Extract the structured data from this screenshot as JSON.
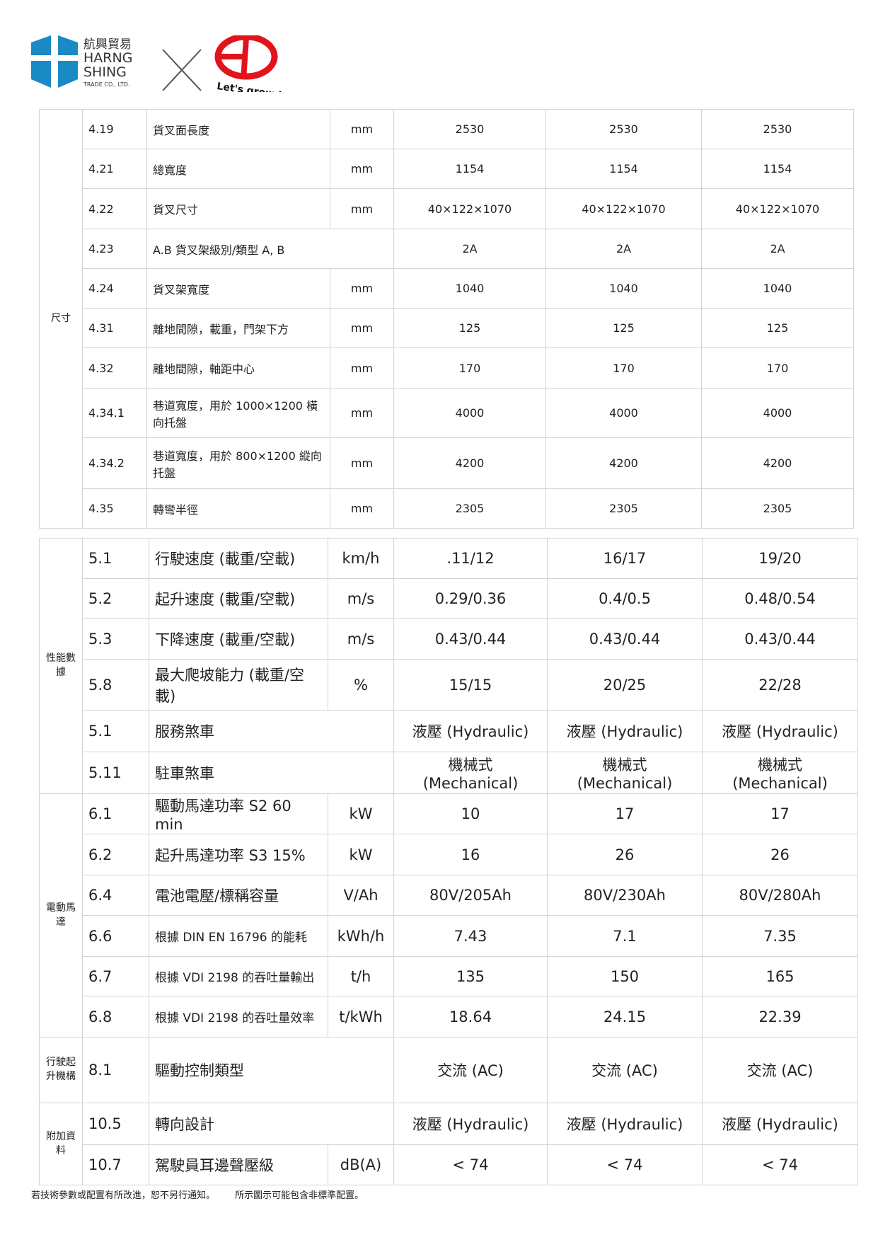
{
  "header": {
    "company_cn": "航興貿易",
    "company_en_1": "HARNG",
    "company_en_2": "SHING",
    "company_sub": "TRADE CO., LTD.",
    "partner_logo_text": "EP",
    "partner_slogan": "Let's grow together",
    "brand_colors": {
      "harng_shing_blue": "#1a8ac4",
      "ep_red": "#e2141b"
    }
  },
  "table1": {
    "groups": [
      {
        "category": "尺寸",
        "rows": [
          {
            "no": "4.19",
            "name": "貨叉面長度",
            "unit": "mm",
            "values": [
              "2530",
              "2530",
              "2530"
            ]
          },
          {
            "no": "4.21",
            "name": "總寬度",
            "unit": "mm",
            "values": [
              "1154",
              "1154",
              "1154"
            ]
          },
          {
            "no": "4.22",
            "name": "貨叉尺寸",
            "unit": "mm",
            "values": [
              "40×122×1070",
              "40×122×1070",
              "40×122×1070"
            ]
          },
          {
            "no": "4.23",
            "name": "A.B 貨叉架級別/類型 A, B",
            "unit": "",
            "span": true,
            "values": [
              "2A",
              "2A",
              "2A"
            ]
          },
          {
            "no": "4.24",
            "name": "貨叉架寬度",
            "unit": "mm",
            "values": [
              "1040",
              "1040",
              "1040"
            ]
          },
          {
            "no": "4.31",
            "name": "離地間隙，載重，門架下方",
            "unit": "mm",
            "values": [
              "125",
              "125",
              "125"
            ]
          },
          {
            "no": "4.32",
            "name": "離地間隙，軸距中心",
            "unit": "mm",
            "values": [
              "170",
              "170",
              "170"
            ]
          },
          {
            "no": "4.34.1",
            "name": "巷道寬度，用於 1000×1200 橫向托盤",
            "unit": "mm",
            "values": [
              "4000",
              "4000",
              "4000"
            ]
          },
          {
            "no": "4.34.2",
            "name": "巷道寬度，用於 800×1200 縱向托盤",
            "unit": "mm",
            "values": [
              "4200",
              "4200",
              "4200"
            ]
          },
          {
            "no": "4.35",
            "name": "轉彎半徑",
            "unit": "mm",
            "values": [
              "2305",
              "2305",
              "2305"
            ]
          }
        ]
      }
    ]
  },
  "table2": {
    "groups": [
      {
        "category": "性能數據",
        "rows": [
          {
            "no": "5.1",
            "name": "行駛速度 (載重/空載)",
            "unit": "km/h",
            "values": [
              ".11/12",
              "16/17",
              "19/20"
            ]
          },
          {
            "no": "5.2",
            "name": "起升速度 (載重/空載)",
            "unit": "m/s",
            "values": [
              "0.29/0.36",
              "0.4/0.5",
              "0.48/0.54"
            ]
          },
          {
            "no": "5.3",
            "name": "下降速度 (載重/空載)",
            "unit": "m/s",
            "values": [
              "0.43/0.44",
              "0.43/0.44",
              "0.43/0.44"
            ]
          },
          {
            "no": "5.8",
            "name": "最大爬坡能力 (載重/空載)",
            "unit": "%",
            "values": [
              "15/15",
              "20/25",
              "22/28"
            ]
          },
          {
            "no": "5.1",
            "name": "服務煞車",
            "unit": "",
            "span": true,
            "values": [
              "液壓 (Hydraulic)",
              "液壓 (Hydraulic)",
              "液壓 (Hydraulic)"
            ]
          },
          {
            "no": "5.11",
            "name": "駐車煞車",
            "unit": "",
            "span": true,
            "values": [
              "機械式 (Mechanical)",
              "機械式 (Mechanical)",
              "機械式 (Mechanical)"
            ]
          }
        ]
      },
      {
        "category": "電動馬達",
        "rows": [
          {
            "no": "6.1",
            "name": "驅動馬達功率 S2 60 min",
            "unit": "kW",
            "values": [
              "10",
              "17",
              "17"
            ]
          },
          {
            "no": "6.2",
            "name": "起升馬達功率 S3 15%",
            "unit": "kW",
            "values": [
              "16",
              "26",
              "26"
            ]
          },
          {
            "no": "6.4",
            "name": "電池電壓/標稱容量",
            "unit": "V/Ah",
            "values": [
              "80V/205Ah",
              "80V/230Ah",
              "80V/280Ah"
            ]
          },
          {
            "no": "6.6",
            "name": "根據 DIN EN 16796 的能耗",
            "unit": "kWh/h",
            "small": true,
            "values": [
              "7.43",
              "7.1",
              "7.35"
            ]
          },
          {
            "no": "6.7",
            "name": "根據 VDI 2198 的吞吐量輸出",
            "unit": "t/h",
            "small": true,
            "values": [
              "135",
              "150",
              "165"
            ]
          },
          {
            "no": "6.8",
            "name": "根據 VDI 2198 的吞吐量效率",
            "unit": "t/kWh",
            "small": true,
            "values": [
              "18.64",
              "24.15",
              "22.39"
            ]
          }
        ]
      },
      {
        "category": "行駛起升機構",
        "rows": [
          {
            "no": "8.1",
            "name": "驅動控制類型",
            "unit": "",
            "span": true,
            "values": [
              "交流 (AC)",
              "交流 (AC)",
              "交流 (AC)"
            ]
          }
        ]
      },
      {
        "category": "附加資料",
        "rows": [
          {
            "no": "10.5",
            "name": "轉向設計",
            "unit": "",
            "span": true,
            "values": [
              "液壓 (Hydraulic)",
              "液壓 (Hydraulic)",
              "液壓 (Hydraulic)"
            ]
          },
          {
            "no": "10.7",
            "name": "駕駛員耳邊聲壓級",
            "unit": "dB(A)",
            "values": [
              "< 74",
              "< 74",
              "< 74"
            ]
          }
        ]
      }
    ]
  },
  "footer": {
    "note_1": "若技術參數或配置有所改進，恕不另行通知。",
    "note_2": "所示圖示可能包含非標準配置。"
  }
}
